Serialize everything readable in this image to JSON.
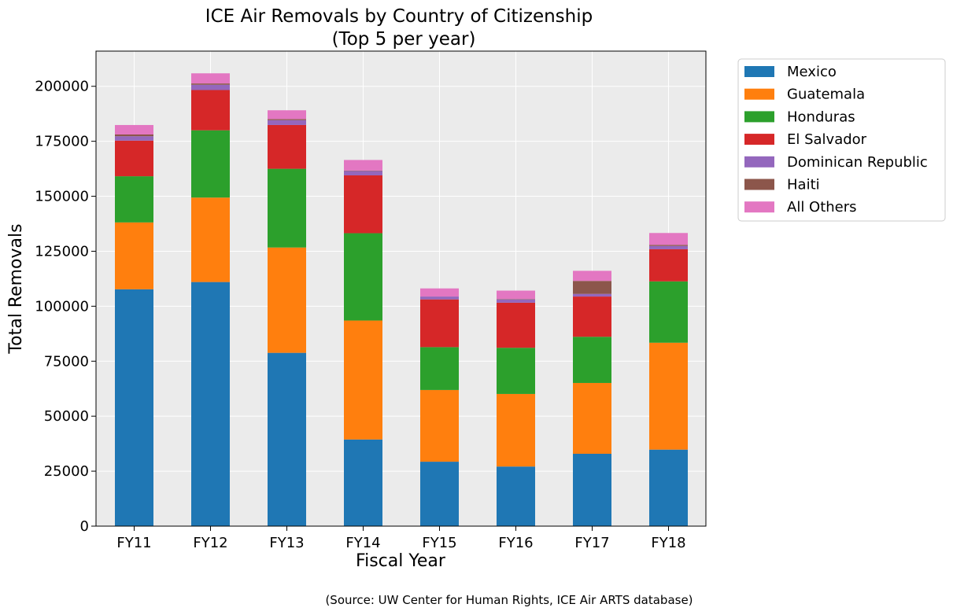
{
  "chart_data": {
    "type": "bar",
    "stacked": true,
    "title_lines": [
      "ICE Air Removals by Country of Citizenship",
      "(Top 5 per year)"
    ],
    "xlabel": "Fiscal Year",
    "ylabel": "Total Removals",
    "categories": [
      "FY11",
      "FY12",
      "FY13",
      "FY14",
      "FY15",
      "FY16",
      "FY17",
      "FY18"
    ],
    "ylim": [
      0,
      216000
    ],
    "yticks": [
      0,
      25000,
      50000,
      75000,
      100000,
      125000,
      150000,
      175000,
      200000
    ],
    "grid": true,
    "legend_position": "outside-top-right",
    "series": [
      {
        "name": "Mexico",
        "color": "#1f77b4",
        "values": [
          107700,
          111000,
          78800,
          39400,
          29300,
          27100,
          32900,
          34800
        ]
      },
      {
        "name": "Guatemala",
        "color": "#ff7f0e",
        "values": [
          30400,
          38400,
          47900,
          54100,
          32600,
          33000,
          32200,
          48600
        ]
      },
      {
        "name": "Honduras",
        "color": "#2ca02c",
        "values": [
          21000,
          30600,
          35800,
          39700,
          19500,
          21000,
          21000,
          27900
        ]
      },
      {
        "name": "El Salvador",
        "color": "#d62728",
        "values": [
          16200,
          18300,
          19900,
          26300,
          21700,
          20500,
          18300,
          14600
        ]
      },
      {
        "name": "Dominican Republic",
        "color": "#9467bd",
        "values": [
          2000,
          2400,
          2200,
          2000,
          1300,
          1500,
          1200,
          1500
        ]
      },
      {
        "name": "Haiti",
        "color": "#8c564b",
        "values": [
          800,
          600,
          500,
          200,
          0,
          200,
          5900,
          500
        ]
      },
      {
        "name": "All Others",
        "color": "#e377c2",
        "values": [
          4300,
          4600,
          4000,
          4800,
          3700,
          3800,
          4600,
          5400
        ]
      }
    ]
  },
  "source_note": "(Source: UW Center for Human Rights, ICE Air ARTS database)",
  "colors": {
    "plot_background": "#ebebeb",
    "grid": "#ffffff"
  }
}
